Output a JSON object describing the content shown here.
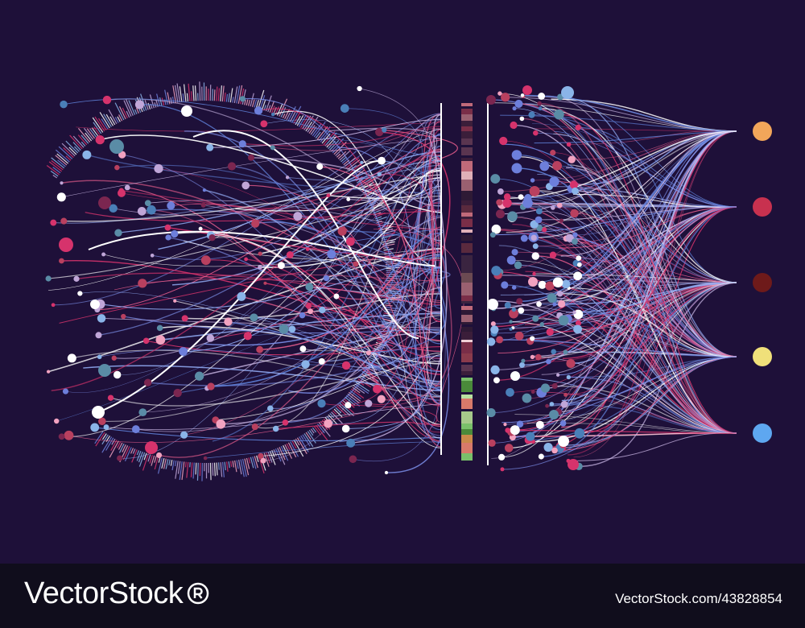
{
  "footer": {
    "brand_text": "VectorStock",
    "brand_mark": "registered-mark",
    "credit_text": "VectorStock.com/43828854"
  },
  "palette": {
    "background": "#1e1039",
    "footer_background": "#100d1c",
    "line_colors": [
      "#d6336c",
      "#7b8ee8",
      "#c9b6e4",
      "#ffffff",
      "#5e7fd6",
      "#e05a8a",
      "#8fa8f0"
    ],
    "dot_colors": [
      "#d6336c",
      "#8ab4e8",
      "#b9405f",
      "#4a7fb8",
      "#f2a2c0",
      "#ffffff",
      "#6d7fdb",
      "#c0a6d8",
      "#5a8ca6",
      "#7b2650"
    ]
  },
  "legend_dots": [
    {
      "name": "orange-dot",
      "color": "#f2a65a"
    },
    {
      "name": "crimson-dot",
      "color": "#c8314f"
    },
    {
      "name": "maroon-dot",
      "color": "#6e1a1a"
    },
    {
      "name": "yellow-dot",
      "color": "#f0e07a"
    },
    {
      "name": "blue-dot",
      "color": "#5ea7f0"
    }
  ],
  "barcode_colors": [
    "#3b1e3a",
    "#5a2a3e",
    "#6b4a52",
    "#2e1a35",
    "#8a3b4c",
    "#c06a7a",
    "#5a3550",
    "#e0b0b8",
    "#7a2e48",
    "#3a2440",
    "#f0d0d6",
    "#9a6070",
    "#d87a6a",
    "#c98a4a",
    "#a6c98a",
    "#7ac06a",
    "#4a8a3a",
    "#b8e0a0"
  ]
}
